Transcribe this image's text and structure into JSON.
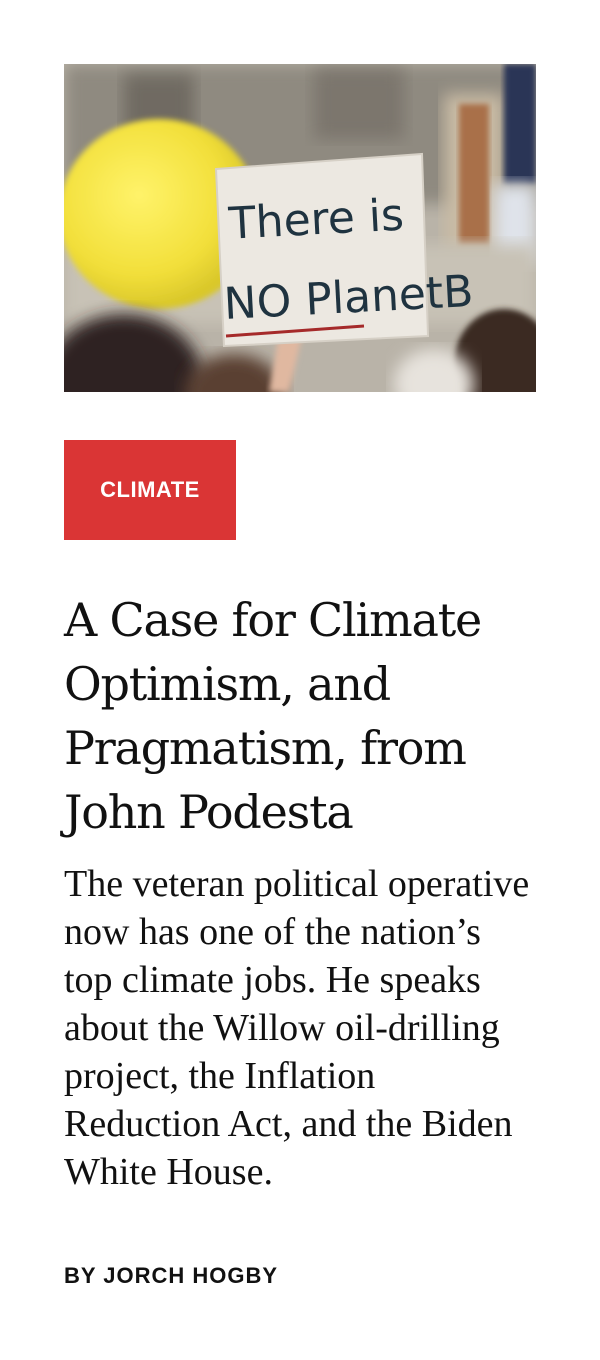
{
  "colors": {
    "tag_background": "#da3535",
    "tag_text": "#ffffff",
    "text": "#111111"
  },
  "image": {
    "sign_line1": "There is",
    "sign_line2": "NO PlanetB"
  },
  "article": {
    "category": "CLIMATE",
    "headline": "A Case for Climate Optimism, and Pragmatism, from John Podesta",
    "dek": "The veteran political operative now has one of the nation’s top climate jobs. He speaks about the Willow oil-drilling project, the Inflation Reduction Act, and the Biden White House.",
    "byline_prefix": "BY",
    "author": "JORCH HOGBY"
  }
}
